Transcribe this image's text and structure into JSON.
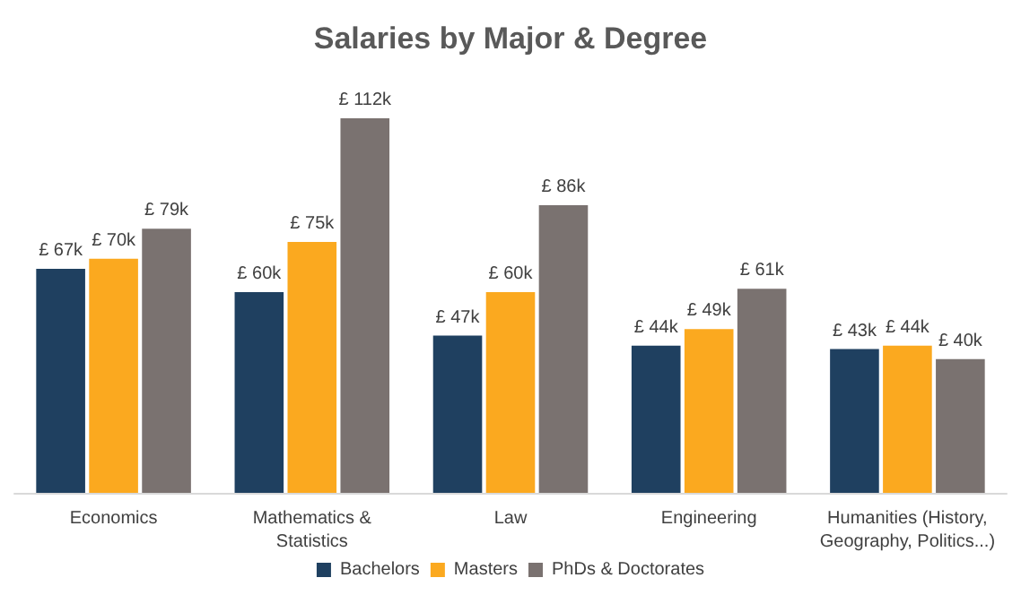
{
  "chart_data": {
    "type": "bar",
    "title": "Salaries by Major & Degree",
    "categories": [
      "Economics",
      "Mathematics &\nStatistics",
      "Law",
      "Engineering",
      "Humanities (History,\nGeography, Politics...)"
    ],
    "series": [
      {
        "name": "Bachelors",
        "color": "#1f4060",
        "values": [
          67,
          60,
          47,
          44,
          43
        ],
        "value_labels": [
          "£ 67k",
          "£ 60k",
          "£ 47k",
          "£ 44k",
          "£ 43k"
        ]
      },
      {
        "name": "Masters",
        "color": "#fba91f",
        "values": [
          70,
          75,
          60,
          49,
          44
        ],
        "value_labels": [
          "£ 70k",
          "£ 75k",
          "£ 60k",
          "£ 49k",
          "£ 44k"
        ]
      },
      {
        "name": "PhDs & Doctorates",
        "color": "#7a7270",
        "values": [
          79,
          112,
          86,
          61,
          40
        ],
        "value_labels": [
          "£ 79k",
          "£ 112k",
          "£ 86k",
          "£ 61k",
          "£ 40k"
        ]
      }
    ],
    "legend": "bottom"
  }
}
